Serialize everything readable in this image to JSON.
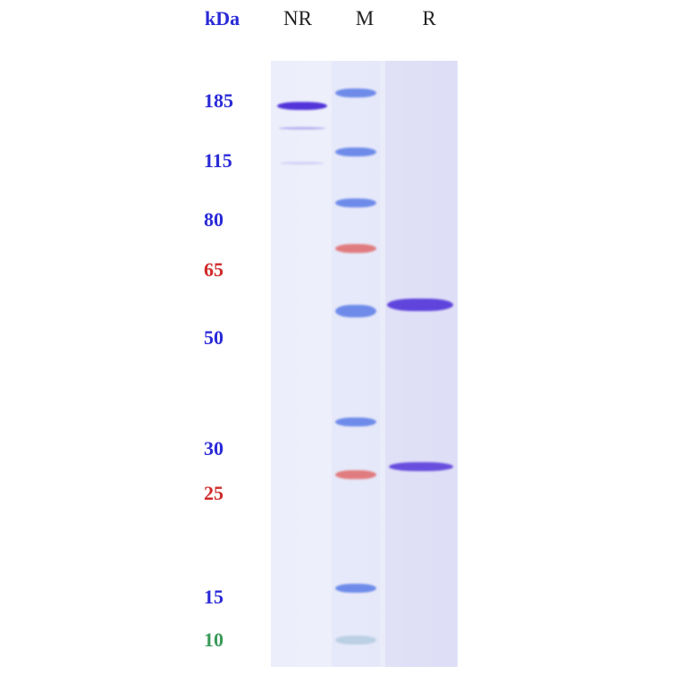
{
  "header": {
    "unit_label": "kDa",
    "lanes": [
      "NR",
      "M",
      "R"
    ]
  },
  "markers": [
    {
      "label": "185",
      "color": "#2a2ad8"
    },
    {
      "label": "115",
      "color": "#2a2ad8"
    },
    {
      "label": "80",
      "color": "#2a2ad8"
    },
    {
      "label": "65",
      "color": "#d02a2a"
    },
    {
      "label": "50",
      "color": "#2a2ad8"
    },
    {
      "label": "30",
      "color": "#2a2ad8"
    },
    {
      "label": "25",
      "color": "#d02a2a"
    },
    {
      "label": "15",
      "color": "#2a2ad8"
    },
    {
      "label": "10",
      "color": "#3a9a5a"
    }
  ],
  "colors": {
    "marker_blue": "#5a7be8",
    "marker_red": "#e06a6a",
    "marker_green": "#9fc0d8",
    "sample": "#4a2ad8"
  }
}
